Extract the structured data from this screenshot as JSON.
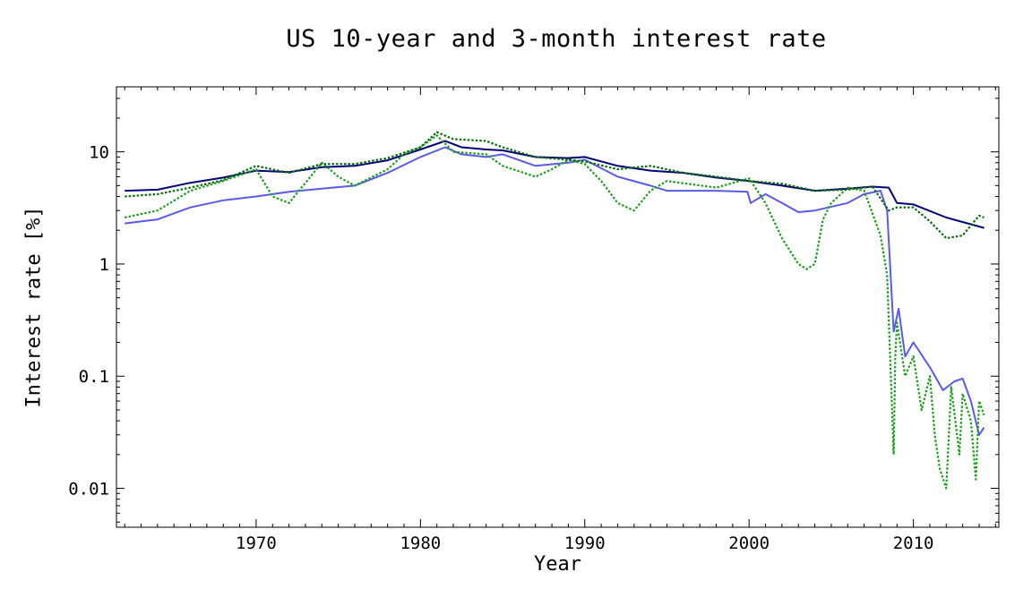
{
  "chart_data": {
    "type": "line",
    "title": "US 10-year and 3-month interest rate",
    "xlabel": "Year",
    "ylabel": "Interest rate [%]",
    "yscale": "log",
    "xlim": [
      1961.5,
      2015.2
    ],
    "ylim": [
      0.0045,
      38
    ],
    "grid": false,
    "x_ticks": [
      1970,
      1980,
      1990,
      2000,
      2010
    ],
    "x_tick_labels": [
      "1970",
      "1980",
      "1990",
      "2000",
      "2010"
    ],
    "y_ticks": [
      0.01,
      0.1,
      1,
      10
    ],
    "y_tick_labels": [
      "0.01",
      "0.1",
      "1",
      "10"
    ],
    "series": [
      {
        "color": "#00007a",
        "style": "solid",
        "x": [
          1962,
          1964,
          1966,
          1968,
          1970,
          1972,
          1974,
          1976,
          1978,
          1980,
          1981.5,
          1982.5,
          1984,
          1985,
          1987,
          1989,
          1990,
          1992,
          1994,
          1996,
          1998,
          2000,
          2002,
          2004,
          2006,
          2007.5,
          2008.5,
          2009,
          2010,
          2012,
          2014.3
        ],
        "values": [
          4.5,
          4.6,
          5.3,
          5.9,
          6.8,
          6.6,
          7.3,
          7.5,
          8.4,
          10.5,
          12.5,
          11.0,
          10.5,
          10.3,
          9.0,
          8.8,
          9.0,
          7.5,
          6.8,
          6.5,
          5.9,
          5.5,
          5.0,
          4.5,
          4.7,
          4.9,
          4.8,
          3.5,
          3.4,
          2.6,
          2.1
        ]
      },
      {
        "color": "#5a5ae8",
        "style": "solid",
        "x": [
          1962,
          1964,
          1966,
          1968,
          1970,
          1972,
          1974,
          1976,
          1978,
          1980,
          1981.5,
          1982.5,
          1984,
          1985,
          1987,
          1989,
          1990,
          1992,
          1994,
          1995,
          1998,
          1999.9,
          2000.1,
          2001,
          2002,
          2003,
          2004,
          2006,
          2007,
          2008,
          2008.4,
          2008.8,
          2009.1,
          2009.5,
          2010,
          2011,
          2011.8,
          2012.5,
          2013,
          2013.5,
          2014,
          2014.3
        ],
        "values": [
          2.3,
          2.5,
          3.2,
          3.7,
          4.0,
          4.4,
          4.7,
          5.0,
          6.5,
          9.0,
          11.0,
          9.5,
          9.0,
          9.5,
          7.5,
          8.0,
          8.5,
          6.0,
          5.0,
          4.5,
          4.5,
          4.4,
          3.5,
          4.2,
          3.5,
          2.9,
          3.0,
          3.5,
          4.2,
          4.5,
          3.0,
          0.25,
          0.4,
          0.15,
          0.2,
          0.12,
          0.075,
          0.09,
          0.095,
          0.06,
          0.03,
          0.035
        ]
      },
      {
        "color": "#1e9e1e",
        "style": "dotted",
        "x": [
          1962,
          1964,
          1966,
          1968,
          1970,
          1971,
          1972,
          1974,
          1975,
          1976,
          1978,
          1979,
          1980,
          1981,
          1982,
          1984,
          1985,
          1987,
          1988,
          1989,
          1990,
          1991,
          1992,
          1993,
          1994,
          1995,
          1998,
          2000,
          2001,
          2002,
          2003,
          2003.5,
          2004,
          2004.5,
          2005,
          2006,
          2007,
          2008,
          2008.4,
          2008.8,
          2008.9,
          2009,
          2009.5,
          2010,
          2010.5,
          2011,
          2011.3,
          2011.6,
          2012,
          2012.3,
          2012.8,
          2013,
          2013.5,
          2013.8,
          2014,
          2014.3
        ],
        "values": [
          2.6,
          3.0,
          4.5,
          5.5,
          7.0,
          4.0,
          3.5,
          8.0,
          6.0,
          5.0,
          7.0,
          9.5,
          11.0,
          14.0,
          10.0,
          9.5,
          7.5,
          6.0,
          7.0,
          8.5,
          7.8,
          5.5,
          3.5,
          3.0,
          4.5,
          5.5,
          4.8,
          5.8,
          3.5,
          1.7,
          1.0,
          0.9,
          1.0,
          2.5,
          3.5,
          4.8,
          4.5,
          1.8,
          0.8,
          0.02,
          0.15,
          0.3,
          0.1,
          0.15,
          0.05,
          0.1,
          0.03,
          0.015,
          0.01,
          0.08,
          0.02,
          0.07,
          0.04,
          0.012,
          0.06,
          0.045
        ]
      },
      {
        "color": "#0a6e0a",
        "style": "dotted",
        "x": [
          1962,
          1964,
          1966,
          1968,
          1970,
          1972,
          1974,
          1976,
          1978,
          1980,
          1981,
          1982,
          1984,
          1985,
          1987,
          1989,
          1990,
          1992,
          1994,
          1996,
          1998,
          2000,
          2002,
          2004,
          2006,
          2007.5,
          2008.5,
          2009,
          2010,
          2011,
          2012,
          2013,
          2014,
          2014.3
        ],
        "values": [
          4.0,
          4.2,
          4.8,
          5.6,
          7.5,
          6.5,
          7.8,
          7.8,
          8.8,
          11.0,
          15.0,
          13.0,
          12.5,
          11.0,
          9.0,
          8.5,
          8.2,
          7.0,
          7.5,
          6.5,
          6.0,
          5.5,
          5.2,
          4.5,
          4.6,
          4.9,
          3.0,
          3.2,
          3.2,
          2.4,
          1.7,
          1.8,
          2.7,
          2.6
        ]
      }
    ]
  }
}
